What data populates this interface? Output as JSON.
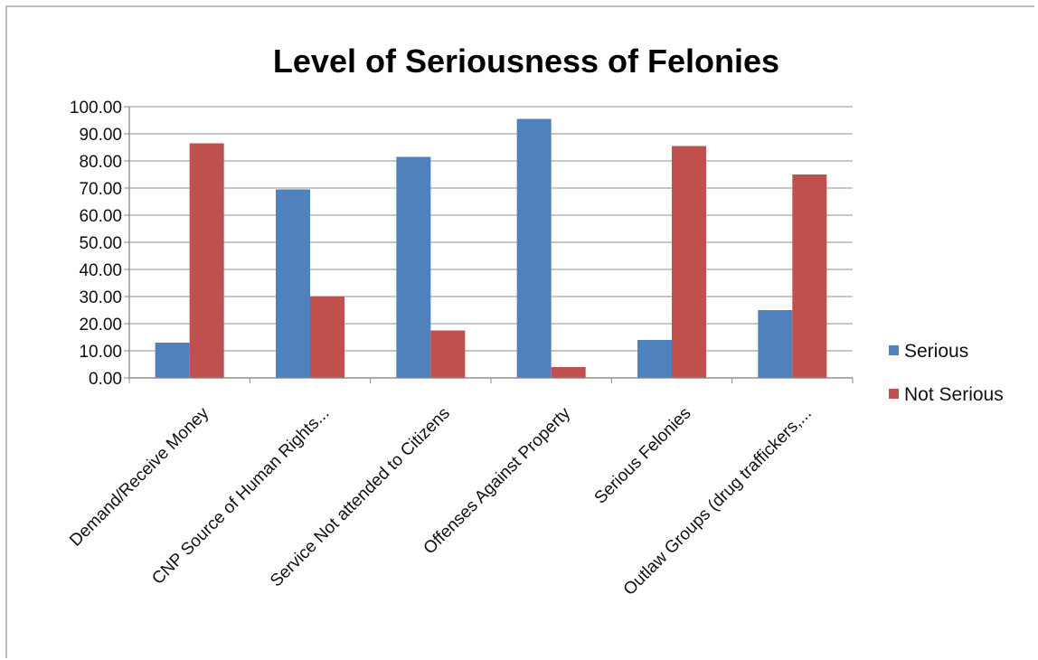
{
  "chart_data": {
    "type": "bar",
    "title": "Level of Seriousness of Felonies",
    "categories": [
      "Demand/Receive Money",
      "CNP Source of Human Rights...",
      "Service Not attended to Citizens",
      "Offenses Against Property",
      "Serious Felonies",
      "Outlaw Groups (drug traffickers,..."
    ],
    "series": [
      {
        "name": "Serious",
        "color": "#4F81BD",
        "values": [
          13,
          69.5,
          81.5,
          95.5,
          14,
          25
        ]
      },
      {
        "name": "Not Serious",
        "color": "#C0504D",
        "values": [
          86.5,
          30,
          17.5,
          4,
          85.5,
          75
        ]
      }
    ],
    "yticks": [
      "0.00",
      "10.00",
      "20.00",
      "30.00",
      "40.00",
      "50.00",
      "60.00",
      "70.00",
      "80.00",
      "90.00",
      "100.00"
    ],
    "ylim": [
      0,
      100
    ],
    "grid": true,
    "legend_position": "right"
  }
}
